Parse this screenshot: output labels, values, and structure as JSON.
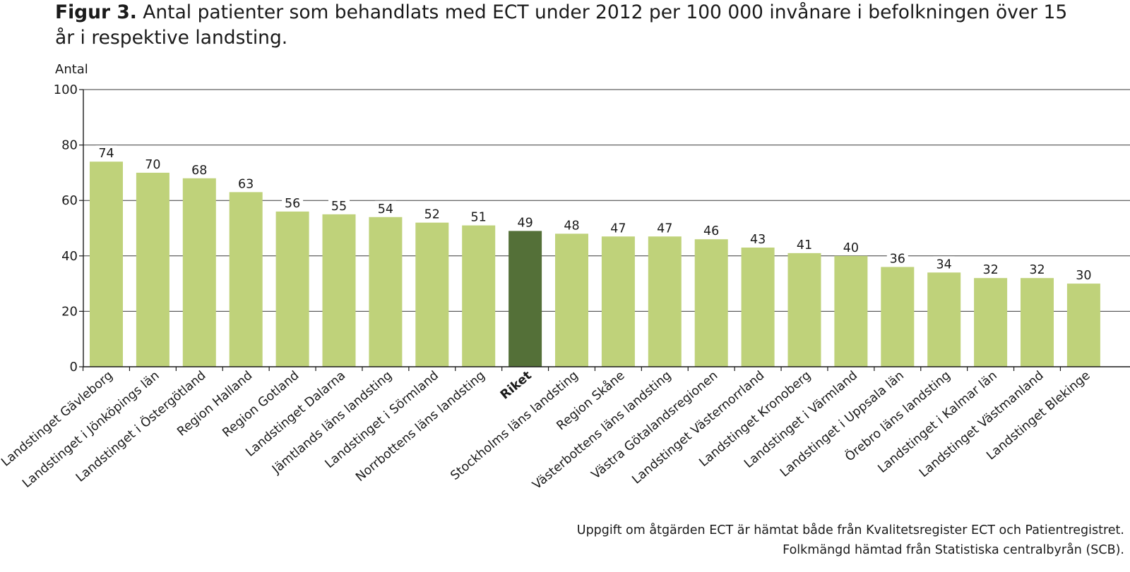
{
  "title": {
    "figure_label": "Figur 3.",
    "text": " Antal patienter som behandlats med ECT under 2012 per 100 000 invånare i befolkningen över 15 år i respektive landsting."
  },
  "footnotes": [
    "Uppgift om åtgärden ECT är hämtat både från Kvalitetsregister ECT och Patientregistret.",
    "Folkmängd hämtad från Statistiska centralbyrån (SCB)."
  ],
  "chart_data": {
    "type": "bar",
    "title": "Figur 3. Antal patienter som behandlats med ECT under 2012 per 100 000 invånare i befolkningen över 15 år i respektive landsting.",
    "xlabel": "",
    "ylabel": "Antal",
    "ylim": [
      0,
      100
    ],
    "yticks": [
      0,
      20,
      40,
      60,
      80,
      100
    ],
    "grid": "horizontal",
    "categories": [
      "Landstinget Gävleborg",
      "Landstinget i Jönköpings län",
      "Landstinget i Östergötland",
      "Region Halland",
      "Region Gotland",
      "Landstinget Dalarna",
      "Jämtlands läns landsting",
      "Landstinget i Sörmland",
      "Norrbottens läns landsting",
      "Riket",
      "Stockholms läns landsting",
      "Region Skåne",
      "Västerbottens läns landsting",
      "Västra Götalandsregionen",
      "Landstinget Västernorrland",
      "Landstinget Kronoberg",
      "Landstinget i Värmland",
      "Landstinget i Uppsala län",
      "Örebro läns landsting",
      "Landstinget i Kalmar län",
      "Landstinget Västmanland",
      "Landstinget Blekinge"
    ],
    "values": [
      74,
      70,
      68,
      63,
      56,
      55,
      54,
      52,
      51,
      49,
      48,
      47,
      47,
      46,
      43,
      41,
      40,
      36,
      34,
      32,
      32,
      30
    ],
    "highlight_category": "Riket",
    "colors": {
      "bar": "#bfd27a",
      "highlight": "#547038",
      "grid": "#3a3a3a",
      "axis": "#1a1a1a"
    }
  }
}
